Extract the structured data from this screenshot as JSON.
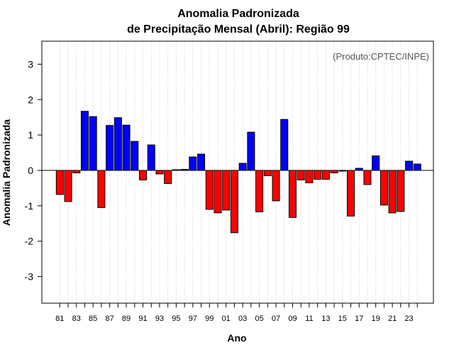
{
  "chart_data": {
    "type": "bar",
    "title_line1": "Anomalia Padronizada",
    "title_line2": "de Precipitação Mensal (Abril): Região 99",
    "xlabel": "Ano",
    "ylabel": "Anomalia Padronizada",
    "credit": "(Produto:CPTEC/INPE)",
    "ylim": [
      -3.75,
      3.65
    ],
    "yticks": [
      "-3",
      "-2",
      "-1",
      "0",
      "1",
      "2",
      "3"
    ],
    "xtick_labels": [
      "81",
      "83",
      "85",
      "87",
      "89",
      "91",
      "93",
      "95",
      "97",
      "99",
      "01",
      "03",
      "05",
      "07",
      "09",
      "11",
      "13",
      "15",
      "17",
      "19",
      "21",
      "23"
    ],
    "x": [
      1981,
      1982,
      1983,
      1984,
      1985,
      1986,
      1987,
      1988,
      1989,
      1990,
      1991,
      1992,
      1993,
      1994,
      1995,
      1996,
      1997,
      1998,
      1999,
      2000,
      2001,
      2002,
      2003,
      2004,
      2005,
      2006,
      2007,
      2008,
      2009,
      2010,
      2011,
      2012,
      2013,
      2014,
      2015,
      2016,
      2017,
      2018,
      2019,
      2020,
      2021,
      2022,
      2023,
      2024
    ],
    "values": [
      -0.68,
      -0.88,
      -0.07,
      1.67,
      1.52,
      -1.05,
      1.27,
      1.49,
      1.28,
      0.82,
      -0.27,
      0.72,
      -0.1,
      -0.37,
      0.02,
      0.03,
      0.38,
      0.46,
      -1.1,
      -1.2,
      -1.12,
      -1.76,
      0.2,
      1.08,
      -1.17,
      -0.15,
      -0.86,
      1.44,
      -1.33,
      -0.27,
      -0.35,
      -0.25,
      -0.25,
      -0.07,
      -0.02,
      -1.29,
      0.06,
      -0.4,
      0.41,
      -0.98,
      -1.2,
      -1.16,
      0.26,
      0.18
    ],
    "positive_color": "#0000ff",
    "negative_color": "#ff0000"
  }
}
